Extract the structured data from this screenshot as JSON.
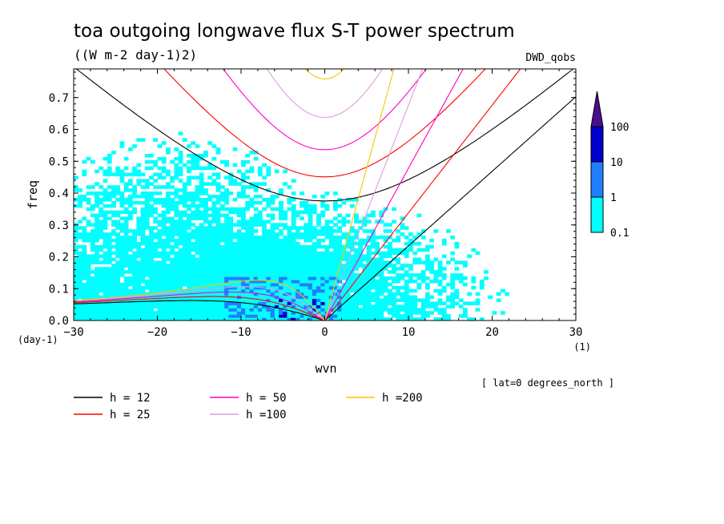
{
  "chart_data": {
    "type": "heatmap",
    "title": "toa outgoing longwave flux S-T power spectrum",
    "subtitle": "((W m-2 day-1)2)",
    "dataset_label": "DWD_qobs",
    "xlabel": "wvn",
    "ylabel": "freq",
    "x_unit": "(1)",
    "y_unit": "(day-1)",
    "xlim": [
      -30,
      30
    ],
    "ylim": [
      0,
      0.79
    ],
    "x_ticks": [
      "-30",
      "-20",
      "-10",
      "0",
      "10",
      "20",
      "30"
    ],
    "y_ticks": [
      "0.0",
      "0.1",
      "0.2",
      "0.3",
      "0.4",
      "0.5",
      "0.6",
      "0.7"
    ],
    "colorbar": {
      "levels": [
        "0.1",
        "1",
        "10",
        "100"
      ],
      "colors": [
        "#00ffff",
        "#1f7fff",
        "#0000cc",
        "#4b0f8f"
      ]
    },
    "annotation": "[ lat=0 degrees_north ]",
    "legend": [
      {
        "label": "h = 12",
        "color": "#000000",
        "h": 12
      },
      {
        "label": "h = 25",
        "color": "#ff0000",
        "h": 25
      },
      {
        "label": "h = 50",
        "color": "#ff00c8",
        "h": 50
      },
      {
        "label": "h =100",
        "color": "#e09be0",
        "h": 100
      },
      {
        "label": "h =200",
        "color": "#f5c800",
        "h": 200
      }
    ]
  }
}
